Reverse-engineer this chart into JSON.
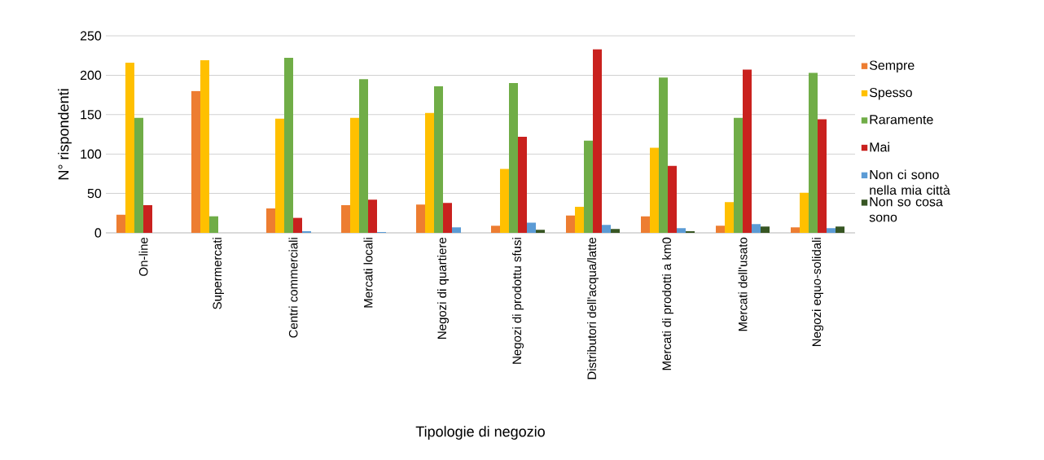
{
  "chart_data": {
    "type": "bar",
    "xlabel": "Tipologie di negozio",
    "ylabel": "N° rispondenti",
    "categories": [
      "On-line",
      "Supermercati",
      "Centri commerciali",
      "Mercati locali",
      "Negozi di quartiere",
      "Negozi di prodottu sfusi",
      "Distributori dell'acqua/latte",
      "Mercati di prodotti a km0",
      "Mercati dell'usato",
      "Negozi equo-solidali"
    ],
    "series": [
      {
        "name": "Sempre",
        "color": "#ed7d31",
        "values": [
          23,
          180,
          31,
          35,
          36,
          9,
          22,
          21,
          9,
          7
        ]
      },
      {
        "name": "Spesso",
        "color": "#ffc000",
        "values": [
          216,
          219,
          145,
          146,
          152,
          81,
          33,
          108,
          39,
          51
        ]
      },
      {
        "name": "Raramente",
        "color": "#70ad47",
        "values": [
          146,
          21,
          222,
          195,
          186,
          190,
          117,
          197,
          146,
          203
        ]
      },
      {
        "name": "Mai",
        "color": "#c9211e",
        "values": [
          35,
          0,
          19,
          42,
          38,
          122,
          233,
          85,
          207,
          144
        ]
      },
      {
        "name": "Non ci sono nella mia città",
        "color": "#5b9bd5",
        "values": [
          0,
          0,
          2,
          1,
          7,
          13,
          10,
          6,
          11,
          6
        ]
      },
      {
        "name": "Non so cosa sono",
        "color": "#375623",
        "values": [
          0,
          0,
          0,
          0,
          0,
          4,
          5,
          2,
          8,
          8
        ]
      }
    ],
    "ylim": [
      0,
      250
    ],
    "yticks": [
      0,
      50,
      100,
      150,
      200,
      250
    ],
    "grid": "y",
    "legend": "right"
  }
}
